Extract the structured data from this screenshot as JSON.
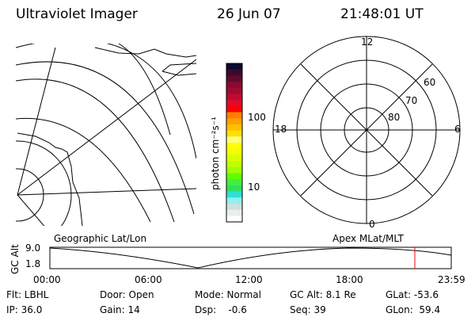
{
  "header": {
    "title": "Ultraviolet Imager",
    "date": "26 Jun 07",
    "time": "21:48:01 UT"
  },
  "colorbar": {
    "label": "photon cm⁻²s⁻¹",
    "ticks": [
      "100",
      "10"
    ],
    "colors": [
      "#0a0a30",
      "#3a0a30",
      "#600a30",
      "#8a0a30",
      "#a00a30",
      "#c00a30",
      "#e00a30",
      "#ff0000",
      "#ff8000",
      "#ffa000",
      "#ffc000",
      "#ffe000",
      "#ffff80",
      "#ffff00",
      "#f0ff00",
      "#d8ff00",
      "#c0ff00",
      "#a0ff00",
      "#60ff00",
      "#40f040",
      "#30e060",
      "#30e0d0",
      "#90f0f0",
      "#d0e0e0",
      "#e8f0e8",
      "#ffffff"
    ]
  },
  "polar": {
    "mlt_labels": {
      "top": "12",
      "left": "18",
      "right": "6",
      "bottom": "0"
    },
    "lat_labels": [
      "60",
      "70",
      "80"
    ]
  },
  "timeline": {
    "left_label": "Geographic Lat/Lon",
    "right_label": "Apex MLat/MLT",
    "y_label": "GC Alt",
    "y_ticks": [
      "9.0",
      "1.8"
    ],
    "x_ticks": [
      "00:00",
      "06:00",
      "12:00",
      "18:00",
      "23:59"
    ],
    "current_time_color": "#ff0000"
  },
  "status": {
    "flt": "Flt: LBHL",
    "ip": "IP: 36.0",
    "door": "Door: Open",
    "gain": "Gain: 14",
    "mode": "Mode: Normal",
    "dsp": "Dsp:    -0.6",
    "gcalt": "GC Alt: 8.1 Re",
    "seq": "Seq: 39",
    "glat": "GLat: -53.6",
    "glon": "GLon:  59.4"
  }
}
